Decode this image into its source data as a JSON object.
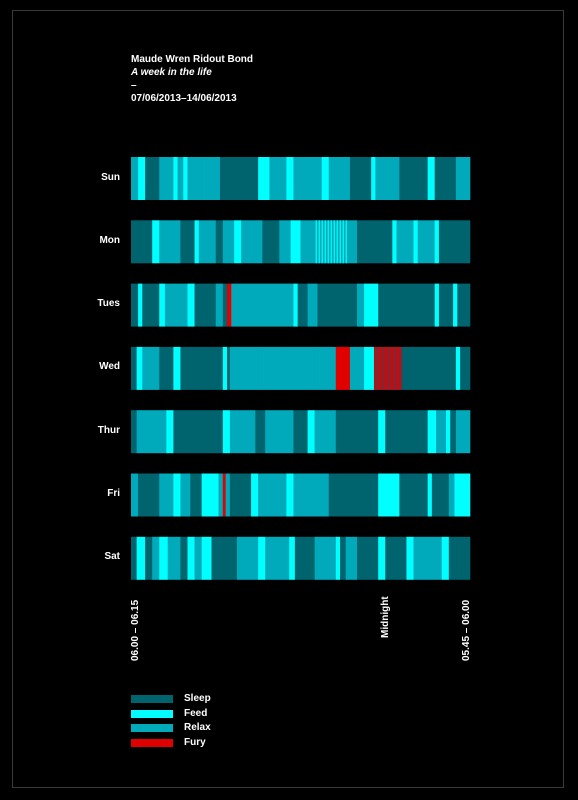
{
  "header": {
    "name": "Maude Wren Ridout Bond",
    "subtitle": "A week in the life",
    "dash": "–",
    "dates": "07/06/2013–14/06/2013"
  },
  "colors": {
    "Sleep": "#00646e",
    "Feed": "#00ffff",
    "Relax": "#00aabb",
    "Fury": "#e00000",
    "fury_stripe_bg": "#7a2a36"
  },
  "axis": {
    "start": "06.00 – 06.15",
    "midnight": "Midnight",
    "end": "05.45 – 06.00"
  },
  "legend": [
    {
      "label": "Sleep",
      "color": "#00646e"
    },
    {
      "label": "Feed",
      "color": "#00ffff"
    },
    {
      "label": "Relax",
      "color": "#00aabb"
    },
    {
      "label": "Fury",
      "color": "#e00000"
    }
  ],
  "chart_data": {
    "type": "timeline",
    "title": "A week in the life",
    "x_unit": "hours from 06:00",
    "x_range": [
      0,
      24
    ],
    "categories": [
      "Sleep",
      "Feed",
      "Relax",
      "Fury"
    ],
    "days": [
      {
        "label": "Sun",
        "segments": [
          {
            "s": 0,
            "e": 0.5,
            "c": "Relax"
          },
          {
            "s": 0.5,
            "e": 1,
            "c": "Feed"
          },
          {
            "s": 1,
            "e": 2,
            "c": "Sleep"
          },
          {
            "s": 2,
            "e": 3,
            "c": "Relax"
          },
          {
            "s": 3,
            "e": 3.3,
            "c": "Feed"
          },
          {
            "s": 3.3,
            "e": 3.7,
            "c": "Relax"
          },
          {
            "s": 3.7,
            "e": 4,
            "c": "Feed"
          },
          {
            "s": 4,
            "e": 5,
            "c": "Relax"
          },
          {
            "s": 5,
            "e": 6.3,
            "c": "Relax"
          },
          {
            "s": 6.3,
            "e": 9,
            "c": "Sleep"
          },
          {
            "s": 9,
            "e": 9.8,
            "c": "Feed"
          },
          {
            "s": 9.8,
            "e": 11,
            "c": "Relax"
          },
          {
            "s": 11,
            "e": 11.5,
            "c": "Feed"
          },
          {
            "s": 11.5,
            "e": 13.5,
            "c": "Relax"
          },
          {
            "s": 13.5,
            "e": 14,
            "c": "Feed"
          },
          {
            "s": 14,
            "e": 15.5,
            "c": "Relax"
          },
          {
            "s": 15.5,
            "e": 17,
            "c": "Sleep"
          },
          {
            "s": 17,
            "e": 17.3,
            "c": "Feed"
          },
          {
            "s": 17.3,
            "e": 19,
            "c": "Relax"
          },
          {
            "s": 19,
            "e": 21,
            "c": "Sleep"
          },
          {
            "s": 21,
            "e": 21.5,
            "c": "Feed"
          },
          {
            "s": 21.5,
            "e": 23,
            "c": "Sleep"
          },
          {
            "s": 23,
            "e": 24,
            "c": "Relax"
          }
        ]
      },
      {
        "label": "Mon",
        "segments": [
          {
            "s": 0,
            "e": 1.5,
            "c": "Sleep"
          },
          {
            "s": 1.5,
            "e": 2,
            "c": "Feed"
          },
          {
            "s": 2,
            "e": 3.5,
            "c": "Relax"
          },
          {
            "s": 3.5,
            "e": 4.5,
            "c": "Sleep"
          },
          {
            "s": 4.5,
            "e": 4.8,
            "c": "Feed"
          },
          {
            "s": 4.8,
            "e": 6,
            "c": "Relax"
          },
          {
            "s": 6,
            "e": 6.5,
            "c": "Sleep"
          },
          {
            "s": 6.5,
            "e": 7.3,
            "c": "Relax"
          },
          {
            "s": 7.3,
            "e": 7.8,
            "c": "Feed"
          },
          {
            "s": 7.8,
            "e": 9.3,
            "c": "Relax"
          },
          {
            "s": 9.3,
            "e": 10.5,
            "c": "Sleep"
          },
          {
            "s": 10.5,
            "e": 11.3,
            "c": "Relax"
          },
          {
            "s": 11.3,
            "e": 12,
            "c": "Feed"
          },
          {
            "s": 12,
            "e": 13,
            "c": "Relax"
          },
          {
            "s": 13,
            "e": 15.3,
            "c": "Relax",
            "stripes": "Feed"
          },
          {
            "s": 15.3,
            "e": 16,
            "c": "Relax"
          },
          {
            "s": 16,
            "e": 18.5,
            "c": "Sleep"
          },
          {
            "s": 18.5,
            "e": 18.8,
            "c": "Feed"
          },
          {
            "s": 18.8,
            "e": 20,
            "c": "Relax"
          },
          {
            "s": 20,
            "e": 20.3,
            "c": "Feed"
          },
          {
            "s": 20.3,
            "e": 21.5,
            "c": "Relax"
          },
          {
            "s": 21.5,
            "e": 21.8,
            "c": "Feed"
          },
          {
            "s": 21.8,
            "e": 24,
            "c": "Sleep"
          }
        ]
      },
      {
        "label": "Tues",
        "segments": [
          {
            "s": 0,
            "e": 0.5,
            "c": "Sleep"
          },
          {
            "s": 0.5,
            "e": 0.8,
            "c": "Feed"
          },
          {
            "s": 0.8,
            "e": 2,
            "c": "Sleep"
          },
          {
            "s": 2,
            "e": 2.4,
            "c": "Feed"
          },
          {
            "s": 2.4,
            "e": 4,
            "c": "Relax"
          },
          {
            "s": 4,
            "e": 4.5,
            "c": "Feed"
          },
          {
            "s": 4.5,
            "e": 6,
            "c": "Sleep"
          },
          {
            "s": 6,
            "e": 6.5,
            "c": "Relax"
          },
          {
            "s": 6.5,
            "e": 6.8,
            "c": "Sleep"
          },
          {
            "s": 6.8,
            "e": 7.1,
            "c": "Fury"
          },
          {
            "s": 7.1,
            "e": 9.5,
            "c": "Relax"
          },
          {
            "s": 9.5,
            "e": 11.5,
            "c": "Relax"
          },
          {
            "s": 11.5,
            "e": 11.8,
            "c": "Feed"
          },
          {
            "s": 11.8,
            "e": 12.5,
            "c": "Sleep"
          },
          {
            "s": 12.5,
            "e": 13.2,
            "c": "Relax"
          },
          {
            "s": 13.2,
            "e": 16,
            "c": "Sleep"
          },
          {
            "s": 16,
            "e": 16.5,
            "c": "Relax"
          },
          {
            "s": 16.5,
            "e": 17.5,
            "c": "Feed"
          },
          {
            "s": 17.5,
            "e": 21.5,
            "c": "Sleep"
          },
          {
            "s": 21.5,
            "e": 21.8,
            "c": "Feed"
          },
          {
            "s": 21.8,
            "e": 22.8,
            "c": "Sleep"
          },
          {
            "s": 22.8,
            "e": 23.1,
            "c": "Feed"
          },
          {
            "s": 23.1,
            "e": 24,
            "c": "Sleep"
          }
        ]
      },
      {
        "label": "Wed",
        "segments": [
          {
            "s": 0,
            "e": 0.4,
            "c": "Sleep"
          },
          {
            "s": 0.4,
            "e": 0.8,
            "c": "Feed"
          },
          {
            "s": 0.8,
            "e": 2,
            "c": "Relax"
          },
          {
            "s": 2,
            "e": 3,
            "c": "Sleep"
          },
          {
            "s": 3,
            "e": 3.5,
            "c": "Feed"
          },
          {
            "s": 3.5,
            "e": 6.5,
            "c": "Sleep"
          },
          {
            "s": 6.5,
            "e": 6.8,
            "c": "Feed"
          },
          {
            "s": 6.8,
            "e": 7,
            "c": "Sleep"
          },
          {
            "s": 7,
            "e": 9,
            "c": "Relax"
          },
          {
            "s": 9,
            "e": 11,
            "c": "Relax"
          },
          {
            "s": 11,
            "e": 13,
            "c": "Relax"
          },
          {
            "s": 13,
            "e": 14.5,
            "c": "Relax"
          },
          {
            "s": 14.5,
            "e": 15.5,
            "c": "Fury"
          },
          {
            "s": 15.5,
            "e": 16.5,
            "c": "Relax"
          },
          {
            "s": 16.5,
            "e": 17.2,
            "c": "Feed"
          },
          {
            "s": 17.2,
            "e": 19.2,
            "c": "fury_stripe_bg",
            "stripes": "Fury"
          },
          {
            "s": 19.2,
            "e": 23,
            "c": "Sleep"
          },
          {
            "s": 23,
            "e": 23.3,
            "c": "Feed"
          },
          {
            "s": 23.3,
            "e": 24,
            "c": "Sleep"
          }
        ]
      },
      {
        "label": "Thur",
        "segments": [
          {
            "s": 0,
            "e": 0.4,
            "c": "Sleep"
          },
          {
            "s": 0.4,
            "e": 2.5,
            "c": "Relax"
          },
          {
            "s": 2.5,
            "e": 3,
            "c": "Feed"
          },
          {
            "s": 3,
            "e": 6.5,
            "c": "Sleep"
          },
          {
            "s": 6.5,
            "e": 7,
            "c": "Feed"
          },
          {
            "s": 7,
            "e": 8.8,
            "c": "Relax"
          },
          {
            "s": 8.8,
            "e": 9.5,
            "c": "Sleep"
          },
          {
            "s": 9.5,
            "e": 11.5,
            "c": "Relax"
          },
          {
            "s": 11.5,
            "e": 12.5,
            "c": "Sleep"
          },
          {
            "s": 12.5,
            "e": 13,
            "c": "Feed"
          },
          {
            "s": 13,
            "e": 14.5,
            "c": "Relax"
          },
          {
            "s": 14.5,
            "e": 15,
            "c": "Sleep"
          },
          {
            "s": 15,
            "e": 17.5,
            "c": "Sleep"
          },
          {
            "s": 17.5,
            "e": 18,
            "c": "Feed"
          },
          {
            "s": 18,
            "e": 21,
            "c": "Sleep"
          },
          {
            "s": 21,
            "e": 21.6,
            "c": "Feed"
          },
          {
            "s": 21.6,
            "e": 22.3,
            "c": "Relax"
          },
          {
            "s": 22.3,
            "e": 22.6,
            "c": "Feed"
          },
          {
            "s": 22.6,
            "e": 23,
            "c": "Sleep"
          },
          {
            "s": 23,
            "e": 24,
            "c": "Relax"
          }
        ]
      },
      {
        "label": "Fri",
        "segments": [
          {
            "s": 0,
            "e": 0.5,
            "c": "Relax"
          },
          {
            "s": 0.5,
            "e": 2,
            "c": "Sleep"
          },
          {
            "s": 2,
            "e": 3,
            "c": "Relax"
          },
          {
            "s": 3,
            "e": 3.5,
            "c": "Feed"
          },
          {
            "s": 3.5,
            "e": 4.2,
            "c": "Relax"
          },
          {
            "s": 4.2,
            "e": 5,
            "c": "Sleep"
          },
          {
            "s": 5,
            "e": 6.2,
            "c": "Feed"
          },
          {
            "s": 6.2,
            "e": 6.5,
            "c": "Relax"
          },
          {
            "s": 6.5,
            "e": 6.7,
            "c": "Fury"
          },
          {
            "s": 6.7,
            "e": 7,
            "c": "Relax"
          },
          {
            "s": 7,
            "e": 8.5,
            "c": "Sleep"
          },
          {
            "s": 8.5,
            "e": 9,
            "c": "Feed"
          },
          {
            "s": 9,
            "e": 11,
            "c": "Relax"
          },
          {
            "s": 11,
            "e": 11.5,
            "c": "Feed"
          },
          {
            "s": 11.5,
            "e": 14,
            "c": "Relax"
          },
          {
            "s": 14,
            "e": 17.5,
            "c": "Sleep"
          },
          {
            "s": 17.5,
            "e": 19,
            "c": "Feed"
          },
          {
            "s": 19,
            "e": 21,
            "c": "Sleep"
          },
          {
            "s": 21,
            "e": 21.3,
            "c": "Feed"
          },
          {
            "s": 21.3,
            "e": 22.5,
            "c": "Sleep"
          },
          {
            "s": 22.5,
            "e": 22.9,
            "c": "Relax"
          },
          {
            "s": 22.9,
            "e": 24,
            "c": "Feed"
          }
        ]
      },
      {
        "label": "Sat",
        "segments": [
          {
            "s": 0,
            "e": 0.4,
            "c": "Sleep"
          },
          {
            "s": 0.4,
            "e": 1,
            "c": "Feed"
          },
          {
            "s": 1,
            "e": 1.5,
            "c": "Sleep"
          },
          {
            "s": 1.5,
            "e": 2,
            "c": "Relax"
          },
          {
            "s": 2,
            "e": 2.6,
            "c": "Feed"
          },
          {
            "s": 2.6,
            "e": 3.5,
            "c": "Relax"
          },
          {
            "s": 3.5,
            "e": 4,
            "c": "Sleep"
          },
          {
            "s": 4,
            "e": 4.5,
            "c": "Feed"
          },
          {
            "s": 4.5,
            "e": 5,
            "c": "Relax"
          },
          {
            "s": 5,
            "e": 5.7,
            "c": "Feed"
          },
          {
            "s": 5.7,
            "e": 6,
            "c": "Sleep"
          },
          {
            "s": 6,
            "e": 7.5,
            "c": "Sleep"
          },
          {
            "s": 7.5,
            "e": 9,
            "c": "Relax"
          },
          {
            "s": 9,
            "e": 9.5,
            "c": "Feed"
          },
          {
            "s": 9.5,
            "e": 10.5,
            "c": "Relax"
          },
          {
            "s": 10.5,
            "e": 11.2,
            "c": "Relax"
          },
          {
            "s": 11.2,
            "e": 11.6,
            "c": "Feed"
          },
          {
            "s": 11.6,
            "e": 13,
            "c": "Sleep"
          },
          {
            "s": 13,
            "e": 14.5,
            "c": "Relax"
          },
          {
            "s": 14.5,
            "e": 14.8,
            "c": "Feed"
          },
          {
            "s": 14.8,
            "e": 15.2,
            "c": "Sleep"
          },
          {
            "s": 15.2,
            "e": 16,
            "c": "Relax"
          },
          {
            "s": 16,
            "e": 17.5,
            "c": "Sleep"
          },
          {
            "s": 17.5,
            "e": 18,
            "c": "Feed"
          },
          {
            "s": 18,
            "e": 19.5,
            "c": "Sleep"
          },
          {
            "s": 19.5,
            "e": 20,
            "c": "Feed"
          },
          {
            "s": 20,
            "e": 22,
            "c": "Relax"
          },
          {
            "s": 22,
            "e": 22.5,
            "c": "Feed"
          },
          {
            "s": 22.5,
            "e": 24,
            "c": "Sleep"
          }
        ]
      }
    ]
  }
}
